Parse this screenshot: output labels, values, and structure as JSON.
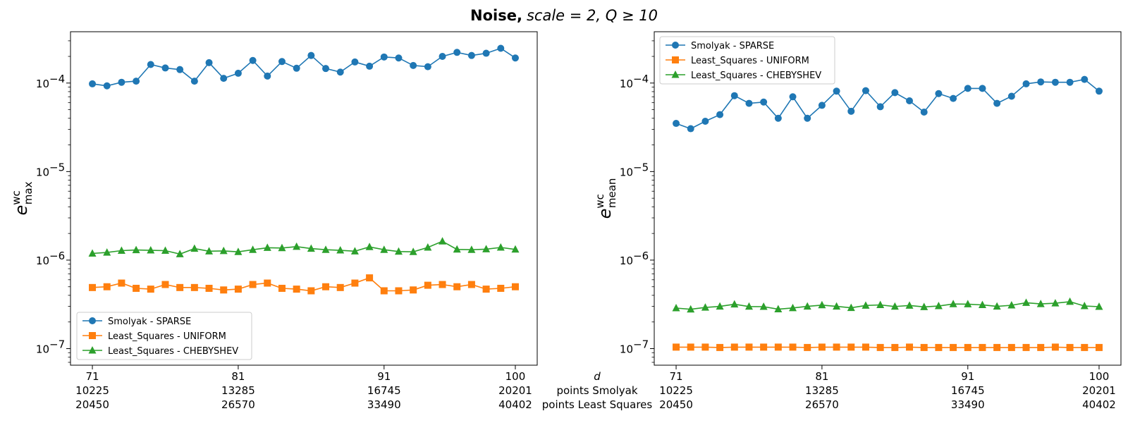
{
  "figure": {
    "title_bold": "Noise,",
    "title_rest": "scale = 2, Q ≥ 10"
  },
  "x_axis_rows": {
    "row_labels": [
      "d",
      "points Smolyak",
      "points Least Squares"
    ],
    "ticks": [
      {
        "d": "71",
        "smolyak": "10225",
        "ls": "20450"
      },
      {
        "d": "81",
        "smolyak": "13285",
        "ls": "26570"
      },
      {
        "d": "91",
        "smolyak": "16745",
        "ls": "33490"
      },
      {
        "d": "100",
        "smolyak": "20201",
        "ls": "40402"
      }
    ]
  },
  "y_ticks": [
    {
      "base": "10",
      "exp": "−4",
      "value": 0.0001
    },
    {
      "base": "10",
      "exp": "−5",
      "value": 1e-05
    },
    {
      "base": "10",
      "exp": "−6",
      "value": 1e-06
    },
    {
      "base": "10",
      "exp": "−7",
      "value": 1e-07
    }
  ],
  "colors": {
    "smolyak": "#1f77b4",
    "uniform": "#ff7f0e",
    "chebyshev": "#2ca02c"
  },
  "chart_data": [
    {
      "type": "line",
      "yscale": "log",
      "ylim": [
        6.5e-08,
        0.00038
      ],
      "xlim": [
        69.5,
        101.5
      ],
      "ylabel": {
        "base": "e",
        "sup": "wc",
        "sub": "max"
      },
      "legend": "lower-left",
      "x": [
        71,
        72,
        73,
        74,
        75,
        76,
        77,
        78,
        79,
        80,
        81,
        82,
        83,
        84,
        85,
        86,
        87,
        88,
        89,
        90,
        91,
        92,
        93,
        94,
        95,
        96,
        97,
        98,
        99,
        100
      ],
      "series": [
        {
          "name": "Smolyak - SPARSE",
          "marker": "circle",
          "values": [
            9.8e-05,
            9.3e-05,
            0.000102,
            0.000105,
            0.000162,
            0.000148,
            0.000142,
            0.000105,
            0.00017,
            0.000113,
            0.000129,
            0.00018,
            0.00012,
            0.000175,
            0.000147,
            0.000205,
            0.000146,
            0.000133,
            0.000173,
            0.000155,
            0.000197,
            0.000192,
            0.000158,
            0.000153,
            0.0002,
            0.000222,
            0.000205,
            0.000217,
            0.000247,
            0.000192
          ]
        },
        {
          "name": "Least_Squares - UNIFORM",
          "marker": "square",
          "values": [
            4.9e-07,
            5e-07,
            5.5e-07,
            4.8e-07,
            4.7e-07,
            5.3e-07,
            4.9e-07,
            4.9e-07,
            4.8e-07,
            4.6e-07,
            4.7e-07,
            5.3e-07,
            5.5e-07,
            4.8e-07,
            4.7e-07,
            4.5e-07,
            5e-07,
            4.9e-07,
            5.5e-07,
            6.3e-07,
            4.5e-07,
            4.5e-07,
            4.6e-07,
            5.2e-07,
            5.3e-07,
            5e-07,
            5.3e-07,
            4.7e-07,
            4.8e-07,
            5e-07
          ]
        },
        {
          "name": "Least_Squares - CHEBYSHEV",
          "marker": "triangle",
          "values": [
            1.19e-06,
            1.22e-06,
            1.28e-06,
            1.3e-06,
            1.29e-06,
            1.28e-06,
            1.17e-06,
            1.35e-06,
            1.26e-06,
            1.27e-06,
            1.24e-06,
            1.31e-06,
            1.38e-06,
            1.37e-06,
            1.42e-06,
            1.35e-06,
            1.31e-06,
            1.29e-06,
            1.26e-06,
            1.41e-06,
            1.31e-06,
            1.25e-06,
            1.24e-06,
            1.39e-06,
            1.63e-06,
            1.32e-06,
            1.31e-06,
            1.33e-06,
            1.39e-06,
            1.32e-06
          ]
        }
      ]
    },
    {
      "type": "line",
      "yscale": "log",
      "ylim": [
        6.5e-08,
        0.00038
      ],
      "xlim": [
        69.5,
        101.5
      ],
      "ylabel": {
        "base": "e",
        "sup": "wc",
        "sub": "mean"
      },
      "legend": "upper-left",
      "x": [
        71,
        72,
        73,
        74,
        75,
        76,
        77,
        78,
        79,
        80,
        81,
        82,
        83,
        84,
        85,
        86,
        87,
        88,
        89,
        90,
        91,
        92,
        93,
        94,
        95,
        96,
        97,
        98,
        99,
        100
      ],
      "series": [
        {
          "name": "Smolyak - SPARSE",
          "marker": "circle",
          "values": [
            3.5e-05,
            3.05e-05,
            3.7e-05,
            4.4e-05,
            7.2e-05,
            5.9e-05,
            6.1e-05,
            4e-05,
            7e-05,
            4e-05,
            5.6e-05,
            8.1e-05,
            4.8e-05,
            8.2e-05,
            5.4e-05,
            7.8e-05,
            6.3e-05,
            4.7e-05,
            7.6e-05,
            6.7e-05,
            8.7e-05,
            8.7e-05,
            5.9e-05,
            7.1e-05,
            9.8e-05,
            0.000103,
            0.000102,
            0.000102,
            0.00011,
            8.1e-05
          ]
        },
        {
          "name": "Least_Squares - UNIFORM",
          "marker": "square",
          "values": [
            1.04e-07,
            1.04e-07,
            1.04e-07,
            1.03e-07,
            1.04e-07,
            1.04e-07,
            1.04e-07,
            1.04e-07,
            1.04e-07,
            1.03e-07,
            1.04e-07,
            1.04e-07,
            1.04e-07,
            1.04e-07,
            1.03e-07,
            1.03e-07,
            1.04e-07,
            1.03e-07,
            1.03e-07,
            1.03e-07,
            1.03e-07,
            1.03e-07,
            1.03e-07,
            1.03e-07,
            1.03e-07,
            1.03e-07,
            1.04e-07,
            1.03e-07,
            1.03e-07,
            1.03e-07
          ]
        },
        {
          "name": "Least_Squares - CHEBYSHEV",
          "marker": "triangle",
          "values": [
            2.87e-07,
            2.78e-07,
            2.92e-07,
            3e-07,
            3.17e-07,
            2.99e-07,
            2.98e-07,
            2.79e-07,
            2.88e-07,
            3e-07,
            3.1e-07,
            3e-07,
            2.89e-07,
            3.07e-07,
            3.12e-07,
            2.99e-07,
            3.07e-07,
            2.96e-07,
            3.03e-07,
            3.19e-07,
            3.18e-07,
            3.12e-07,
            3e-07,
            3.09e-07,
            3.3e-07,
            3.2e-07,
            3.26e-07,
            3.39e-07,
            3.03e-07,
            2.98e-07
          ]
        }
      ]
    }
  ]
}
